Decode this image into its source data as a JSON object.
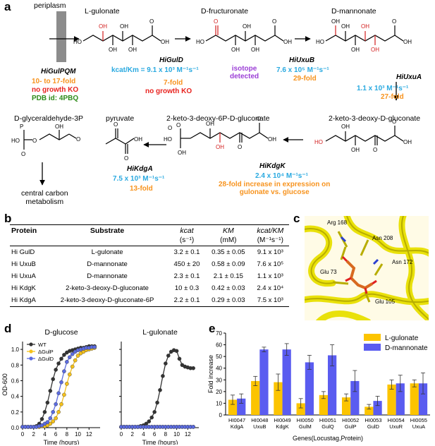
{
  "panel_a": {
    "letter": "a",
    "periplasm": "periplasm",
    "compounds": {
      "l_gulonate": "L-gulonate",
      "d_fructuronate": "D-fructuronate",
      "d_mannonate": "D-mannonate",
      "kdg": "2-keto-3-deoxy-D-gluconate",
      "kdgp": "2-keto-3-deoxy-6P-D-gluconate",
      "pyruvate": "pyruvate",
      "g3p": "D-glyceraldehyde-3P",
      "central": "central carbon\nmetabolism"
    },
    "transporter": {
      "name": "HiGulPQM",
      "fold": "10- to 17-fold",
      "ko": "no growth KO",
      "pdb": "PDB id: 4PBQ"
    },
    "guld": {
      "name": "HiGulD",
      "kcat": "kcat/Km = 9.1 x 10³ M⁻¹s⁻¹",
      "fold": "7-fold",
      "ko": "no growth KO"
    },
    "isotope": "isotope\ndetected",
    "uxub": {
      "name": "HiUxuB",
      "kcat": "7.6 x 10⁵ M⁻¹s⁻¹",
      "fold": "29-fold"
    },
    "uxua": {
      "name": "HiUxuA",
      "kcat": "1.1 x 10³ M⁻¹s⁻¹",
      "fold": "27-fold"
    },
    "kdgk": {
      "name": "HiKdgK",
      "kcat": "2.4 x 10⁴ M⁻¹s⁻¹",
      "fold": "28-fold increase in expression on\ngulonate vs. glucose"
    },
    "kdga": {
      "name": "HiKdgA",
      "kcat": "7.5 x 10³ M⁻¹s⁻¹",
      "fold": "13-fold"
    }
  },
  "panel_b": {
    "letter": "b",
    "headers": {
      "protein": "Protein",
      "substrate": "Substrate",
      "kcat": "kcat",
      "km": "KM",
      "ratio": "kcat/KM"
    },
    "units": {
      "kcat": "(s⁻¹)",
      "km": "(mM)",
      "ratio": "(M⁻¹s⁻¹)"
    },
    "rows": [
      {
        "protein": "Hi GulD",
        "substrate": "L-gulonate",
        "kcat": "3.2 ± 0.1",
        "km": "0.35 ± 0.05",
        "ratio": "9.1 x 10³"
      },
      {
        "protein": "Hi UxuB",
        "substrate": "D-mannonate",
        "kcat": "450 ± 20",
        "km": "0.58 ± 0.09",
        "ratio": "7.6 x 10⁵"
      },
      {
        "protein": "Hi UxuA",
        "substrate": "D-mannonate",
        "kcat": "2.3 ± 0.1",
        "km": "2.1 ± 0.15",
        "ratio": "1.1 x 10³"
      },
      {
        "protein": "Hi KdgK",
        "substrate": "2-keto-3-deoxy-D-gluconate",
        "kcat": "10 ± 0.3",
        "km": "0.42 ± 0.03",
        "ratio": "2.4 x 10⁴"
      },
      {
        "protein": "Hi KdgA",
        "substrate": "2-keto-3-deoxy-D-gluconate-6P",
        "kcat": "2.2 ± 0.1",
        "km": "0.29 ± 0.03",
        "ratio": "7.5 x 10³"
      }
    ]
  },
  "panel_c": {
    "letter": "c",
    "residues": [
      "Arg 168",
      "Asn 208",
      "Asn 172",
      "Glu 73",
      "Glu 105"
    ]
  },
  "panel_d": {
    "letter": "d",
    "plot1_title": "D-glucose",
    "plot2_title": "L-gulonate",
    "ylabel": "OD-600",
    "xlabel": "Time (hours)",
    "legend": [
      "WT",
      "ΔGulP",
      "ΔGulD"
    ]
  },
  "panel_e": {
    "letter": "e",
    "ylabel": "Fold increase",
    "xlabel": "Genes(Locustag,Protein)",
    "legend": [
      "L-gulonate",
      "D-mannonate"
    ]
  },
  "chart_data": [
    {
      "type": "line",
      "title": "D-glucose",
      "xlabel": "Time (hours)",
      "ylabel": "OD-600",
      "xlim": [
        0,
        14
      ],
      "ylim": [
        0,
        1.1
      ],
      "x": [
        0,
        0.5,
        1,
        1.5,
        2,
        2.5,
        3,
        3.5,
        4,
        4.5,
        5,
        5.5,
        6,
        6.5,
        7,
        7.5,
        8,
        8.5,
        9,
        9.5,
        10,
        10.5,
        11,
        11.5,
        12,
        12.5,
        13
      ],
      "series": [
        {
          "name": "WT",
          "color": "#333333",
          "values": [
            0.01,
            0.01,
            0.01,
            0.01,
            0.01,
            0.02,
            0.05,
            0.11,
            0.2,
            0.32,
            0.47,
            0.62,
            0.74,
            0.82,
            0.88,
            0.93,
            0.96,
            0.98,
            0.99,
            1.0,
            1.01,
            1.02,
            1.02,
            1.03,
            1.04,
            1.04,
            1.04
          ]
        },
        {
          "name": "ΔGulP",
          "color": "#f5c11a",
          "values": [
            0.01,
            0.01,
            0.01,
            0.01,
            0.01,
            0.01,
            0.01,
            0.02,
            0.02,
            0.03,
            0.05,
            0.08,
            0.12,
            0.2,
            0.3,
            0.42,
            0.56,
            0.68,
            0.78,
            0.86,
            0.92,
            0.95,
            0.97,
            0.99,
            1.0,
            1.01,
            1.02
          ]
        },
        {
          "name": "ΔGulD",
          "color": "#5b6be0",
          "values": [
            0.01,
            0.01,
            0.01,
            0.01,
            0.01,
            0.01,
            0.02,
            0.03,
            0.05,
            0.07,
            0.12,
            0.2,
            0.3,
            0.44,
            0.58,
            0.72,
            0.84,
            0.9,
            0.94,
            0.97,
            0.99,
            1.0,
            1.01,
            1.02,
            1.02,
            1.03,
            1.03
          ]
        }
      ]
    },
    {
      "type": "line",
      "title": "L-gulonate",
      "xlabel": "Time (hours)",
      "xlim": [
        0,
        14
      ],
      "ylim": [
        0,
        1.1
      ],
      "x": [
        0,
        0.5,
        1,
        1.5,
        2,
        2.5,
        3,
        3.5,
        4,
        4.5,
        5,
        5.5,
        6,
        6.5,
        7,
        7.5,
        8,
        8.5,
        9,
        9.5,
        10,
        10.5,
        11,
        11.5,
        12,
        12.5,
        13
      ],
      "series": [
        {
          "name": "WT",
          "color": "#333333",
          "values": [
            0.01,
            0.01,
            0.01,
            0.01,
            0.01,
            0.01,
            0.01,
            0.02,
            0.03,
            0.05,
            0.08,
            0.13,
            0.2,
            0.32,
            0.48,
            0.66,
            0.82,
            0.92,
            0.97,
            0.99,
            0.98,
            0.88,
            0.8,
            0.78,
            0.77,
            0.76,
            0.76
          ]
        },
        {
          "name": "ΔGulP",
          "color": "#f5c11a",
          "values": [
            0.01,
            0.01,
            0.01,
            0.01,
            0.01,
            0.01,
            0.01,
            0.01,
            0.01,
            0.01,
            0.01,
            0.01,
            0.01,
            0.01,
            0.01,
            0.01,
            0.01,
            0.01,
            0.01,
            0.01,
            0.01,
            0.01,
            0.01,
            0.01,
            0.01,
            0.01,
            0.01
          ]
        },
        {
          "name": "ΔGulD",
          "color": "#5b6be0",
          "values": [
            0.01,
            0.01,
            0.01,
            0.01,
            0.01,
            0.01,
            0.01,
            0.01,
            0.01,
            0.01,
            0.01,
            0.01,
            0.01,
            0.01,
            0.01,
            0.01,
            0.01,
            0.01,
            0.01,
            0.01,
            0.01,
            0.01,
            0.01,
            0.01,
            0.01,
            0.01,
            0.01
          ]
        }
      ]
    },
    {
      "type": "bar",
      "ylabel": "Fold increase",
      "xlabel": "Genes(Locustag,Protein)",
      "ylim": [
        0,
        70
      ],
      "yticks": [
        0,
        10,
        20,
        30,
        40,
        50,
        60,
        70
      ],
      "categories": [
        "HI0047\nKdgA",
        "HI0048\nUxuB",
        "HI0049\nKdgK",
        "HI0050\nGulM",
        "HI0051\nGulQ",
        "HI0052\nGulP",
        "HI0053\nGulD",
        "HI0054\nUxuR",
        "HI0055\nUxuA"
      ],
      "series": [
        {
          "name": "L-gulonate",
          "color": "#fcc400",
          "values": [
            13,
            29,
            28,
            10,
            17,
            15,
            7,
            26,
            27
          ],
          "errors": [
            4,
            4,
            7,
            4,
            3,
            3,
            2,
            4,
            3
          ]
        },
        {
          "name": "D-mannonate",
          "color": "#5a5cf0",
          "values": [
            14,
            56,
            56,
            45,
            51,
            29,
            12,
            27,
            27
          ],
          "errors": [
            4,
            2,
            5,
            6,
            9,
            9,
            4,
            7,
            9
          ]
        }
      ]
    }
  ]
}
